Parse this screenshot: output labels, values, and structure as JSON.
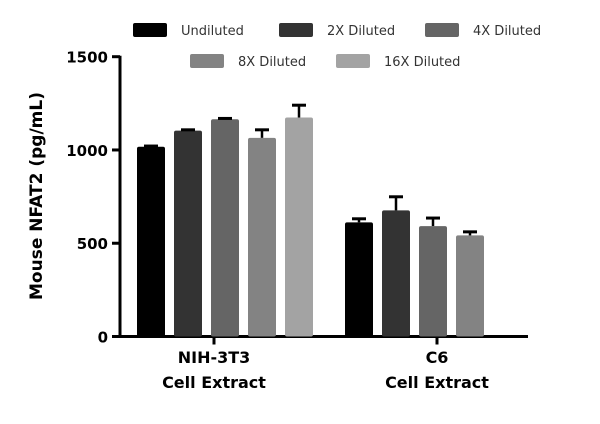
{
  "chart_data": {
    "type": "bar",
    "title": "",
    "xlabel": "",
    "ylabel": "Mouse NFAT2 (pg/mL)",
    "ylim": [
      0,
      1500
    ],
    "yticks": [
      "0",
      "500",
      "1000",
      "1500"
    ],
    "grid": false,
    "legend_position": "top",
    "categories": [
      {
        "line1": "NIH-3T3",
        "line2": "Cell Extract"
      },
      {
        "line1": "C6",
        "line2": "Cell Extract"
      }
    ],
    "series": [
      {
        "name": "Undiluted",
        "color": "#000000",
        "values": [
          1017,
          612
        ],
        "errors": [
          4,
          19
        ]
      },
      {
        "name": "2X Diluted",
        "color": "#333333",
        "values": [
          1104,
          676
        ],
        "errors": [
          4,
          73
        ]
      },
      {
        "name": "4X Diluted",
        "color": "#656565",
        "values": [
          1165,
          592
        ],
        "errors": [
          4,
          43
        ]
      },
      {
        "name": "8X Diluted",
        "color": "#838383",
        "values": [
          1065,
          542
        ],
        "errors": [
          43,
          19
        ]
      },
      {
        "name": "16X Diluted",
        "color": "#a3a3a3",
        "values": [
          1174,
          null
        ],
        "errors": [
          66,
          null
        ]
      }
    ]
  }
}
